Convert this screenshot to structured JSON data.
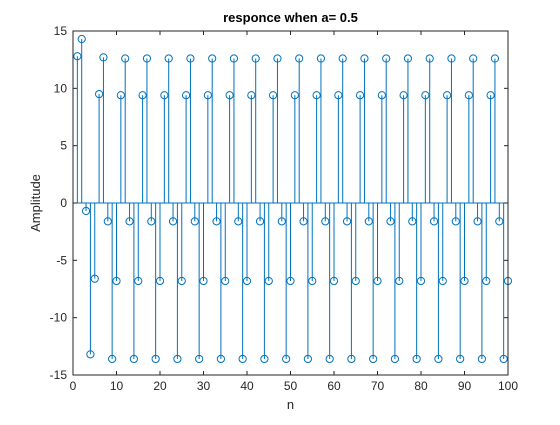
{
  "chart_data": {
    "type": "stem",
    "title": "responce when a= 0.5",
    "xlabel": "n",
    "ylabel": "Amplitude",
    "xlim": [
      0,
      100
    ],
    "ylim": [
      -15,
      15
    ],
    "xticks": [
      0,
      10,
      20,
      30,
      40,
      50,
      60,
      70,
      80,
      90,
      100
    ],
    "yticks": [
      15,
      10,
      5,
      0,
      -5,
      -10,
      -15
    ],
    "grid": false,
    "color": "#0072bd",
    "series": [
      {
        "x": [
          1,
          2,
          3,
          4,
          5,
          6,
          7,
          8,
          9,
          10,
          11,
          12,
          13,
          14,
          15,
          16,
          17,
          18,
          19,
          20,
          21,
          22,
          23,
          24,
          25,
          26,
          27,
          28,
          29,
          30,
          31,
          32,
          33,
          34,
          35,
          36,
          37,
          38,
          39,
          40,
          41,
          42,
          43,
          44,
          45,
          46,
          47,
          48,
          49,
          50,
          51,
          52,
          53,
          54,
          55,
          56,
          57,
          58,
          59,
          60,
          61,
          62,
          63,
          64,
          65,
          66,
          67,
          68,
          69,
          70,
          71,
          72,
          73,
          74,
          75,
          76,
          77,
          78,
          79,
          80,
          81,
          82,
          83,
          84,
          85,
          86,
          87,
          88,
          89,
          90,
          91,
          92,
          93,
          94,
          95,
          96,
          97,
          98,
          99,
          100
        ],
        "y": [
          12.8,
          14.3,
          -0.7,
          -13.2,
          -6.6,
          9.5,
          12.7,
          -1.6,
          -13.6,
          -6.8,
          9.4,
          12.6,
          -1.6,
          -13.6,
          -6.8,
          9.4,
          12.6,
          -1.6,
          -13.6,
          -6.8,
          9.4,
          12.6,
          -1.6,
          -13.6,
          -6.8,
          9.4,
          12.6,
          -1.6,
          -13.6,
          -6.8,
          9.4,
          12.6,
          -1.6,
          -13.6,
          -6.8,
          9.4,
          12.6,
          -1.6,
          -13.6,
          -6.8,
          9.4,
          12.6,
          -1.6,
          -13.6,
          -6.8,
          9.4,
          12.6,
          -1.6,
          -13.6,
          -6.8,
          9.4,
          12.6,
          -1.6,
          -13.6,
          -6.8,
          9.4,
          12.6,
          -1.6,
          -13.6,
          -6.8,
          9.4,
          12.6,
          -1.6,
          -13.6,
          -6.8,
          9.4,
          12.6,
          -1.6,
          -13.6,
          -6.8,
          9.4,
          12.6,
          -1.6,
          -13.6,
          -6.8,
          9.4,
          12.6,
          -1.6,
          -13.6,
          -6.8,
          9.4,
          12.6,
          -1.6,
          -13.6,
          -6.8,
          9.4,
          12.6,
          -1.6,
          -13.6,
          -6.8,
          9.4,
          12.6,
          -1.6,
          -13.6,
          -6.8,
          9.4,
          12.6,
          -1.6,
          -13.6,
          -6.8
        ]
      }
    ]
  }
}
